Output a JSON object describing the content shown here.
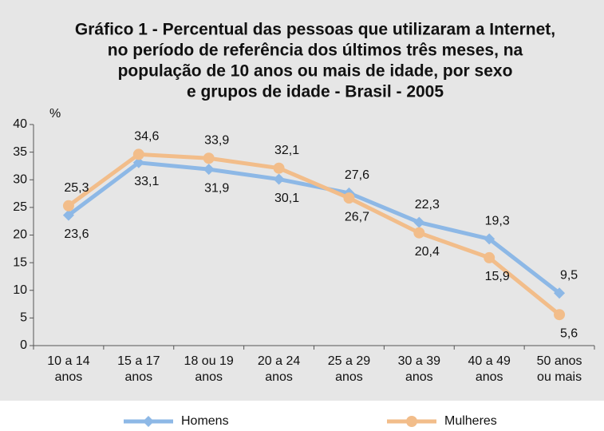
{
  "chart_data": {
    "type": "line",
    "title": [
      "Gráfico 1 - Percentual das pessoas que utilizaram a Internet,",
      "no período de referência dos últimos três meses, na",
      "população de 10 anos ou mais de idade, por sexo",
      "e grupos de idade - Brasil - 2005"
    ],
    "y_label": "%",
    "categories": [
      [
        "10 a 14",
        "anos"
      ],
      [
        "15 a 17",
        "anos"
      ],
      [
        "18 ou 19",
        "anos"
      ],
      [
        "20 a 24",
        "anos"
      ],
      [
        "25 a 29",
        "anos"
      ],
      [
        "30 a 39",
        "anos"
      ],
      [
        "40 a 49",
        "anos"
      ],
      [
        "50 anos",
        "ou mais"
      ]
    ],
    "series": [
      {
        "name": "Homens",
        "color": "#8db8e6",
        "marker": "diamond",
        "values": [
          23.6,
          33.1,
          31.9,
          30.1,
          27.6,
          22.3,
          19.3,
          9.5
        ],
        "value_labels": [
          "23,6",
          "33,1",
          "31,9",
          "30,1",
          "27,6",
          "22,3",
          "19,3",
          "9,5"
        ]
      },
      {
        "name": "Mulheres",
        "color": "#f2bd8a",
        "marker": "circle",
        "values": [
          25.3,
          34.6,
          33.9,
          32.1,
          26.7,
          20.4,
          15.9,
          5.6
        ],
        "value_labels": [
          "25,3",
          "34,6",
          "33,9",
          "32,1",
          "26,7",
          "20,4",
          "15,9",
          "5,6"
        ]
      }
    ],
    "ylim": [
      0,
      40
    ],
    "yticks": [
      0,
      5,
      10,
      15,
      20,
      25,
      30,
      35,
      40
    ]
  }
}
